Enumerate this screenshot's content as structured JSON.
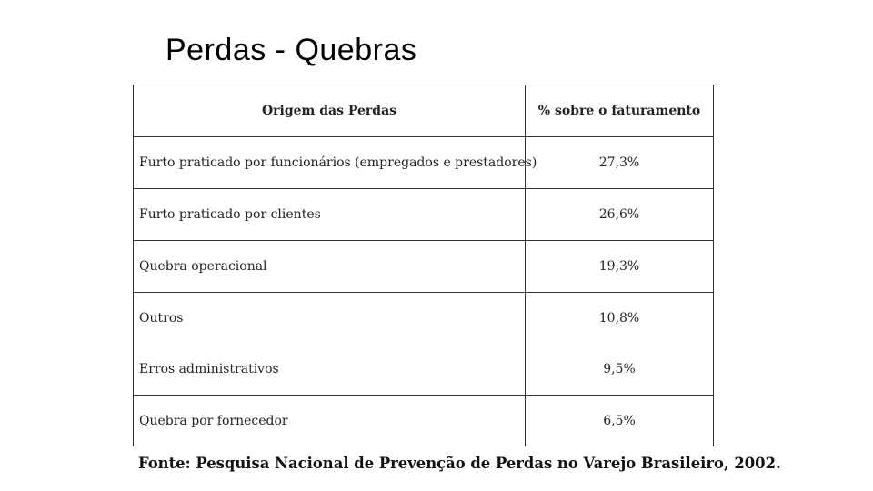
{
  "title": "Perdas - Quebras",
  "table": {
    "headers": [
      "Origem das Perdas",
      "% sobre o faturamento"
    ],
    "rows": [
      {
        "origem": "Furto praticado por funcionários (empregados e prestadores)",
        "percent": "27,3%"
      },
      {
        "origem": "Furto praticado por clientes",
        "percent": "26,6%"
      },
      {
        "origem": "Quebra operacional",
        "percent": "19,3%"
      },
      {
        "origem": "Outros",
        "percent": "10,8%"
      },
      {
        "origem": "Erros administrativos",
        "percent": "9,5%"
      },
      {
        "origem": "Quebra por fornecedor",
        "percent": "6,5%"
      }
    ]
  },
  "source": "Fonte: Pesquisa Nacional de Prevenção de Perdas no Varejo Brasileiro, 2002."
}
